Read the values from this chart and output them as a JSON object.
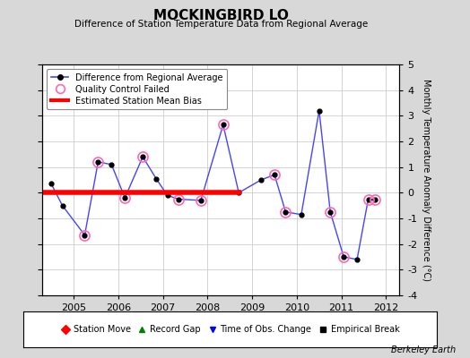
{
  "title": "MOCKINGBIRD LO",
  "subtitle": "Difference of Station Temperature Data from Regional Average",
  "ylabel_right": "Monthly Temperature Anomaly Difference (°C)",
  "credit": "Berkeley Earth",
  "xlim": [
    2004.3,
    2012.3
  ],
  "ylim": [
    -4,
    5
  ],
  "yticks": [
    -4,
    -3,
    -2,
    -1,
    0,
    1,
    2,
    3,
    4,
    5
  ],
  "xticks": [
    2005,
    2006,
    2007,
    2008,
    2009,
    2010,
    2011,
    2012
  ],
  "bias_line": {
    "x_start": 2004.3,
    "x_end": 2008.75,
    "y": 0.0
  },
  "series_x": [
    2004.5,
    2004.75,
    2005.25,
    2005.55,
    2005.85,
    2006.15,
    2006.55,
    2006.85,
    2007.1,
    2007.35,
    2007.85,
    2008.35,
    2008.7,
    2009.2,
    2009.5,
    2009.75,
    2010.1,
    2010.5,
    2010.75,
    2011.05,
    2011.35,
    2011.6,
    2011.75
  ],
  "series_y": [
    0.35,
    -0.5,
    -1.65,
    1.2,
    1.1,
    -0.2,
    1.4,
    0.55,
    -0.1,
    -0.25,
    -0.3,
    2.65,
    0.0,
    0.5,
    0.7,
    -0.75,
    -0.85,
    3.2,
    -0.75,
    -2.5,
    -2.6,
    -0.25,
    -0.25
  ],
  "qc_failed_x": [
    2005.25,
    2005.55,
    2006.15,
    2006.55,
    2007.35,
    2007.85,
    2008.35,
    2009.5,
    2009.75,
    2010.75,
    2011.05,
    2011.6,
    2011.75
  ],
  "qc_failed_y": [
    -1.65,
    1.2,
    -0.2,
    1.4,
    -0.25,
    -0.3,
    2.65,
    0.7,
    -0.75,
    -0.75,
    -2.5,
    -0.25,
    -0.25
  ],
  "line_color": "#4444FF",
  "dot_color": "#000000",
  "qc_color": "#FF69B4",
  "bias_color": "#FF0000",
  "bg_color": "#D8D8D8",
  "plot_bg_color": "#FFFFFF",
  "legend1_items": [
    {
      "label": "Difference from Regional Average"
    },
    {
      "label": "Quality Control Failed"
    },
    {
      "label": "Estimated Station Mean Bias"
    }
  ],
  "legend2_items": [
    {
      "label": "Station Move"
    },
    {
      "label": "Record Gap"
    },
    {
      "label": "Time of Obs. Change"
    },
    {
      "label": "Empirical Break"
    }
  ]
}
